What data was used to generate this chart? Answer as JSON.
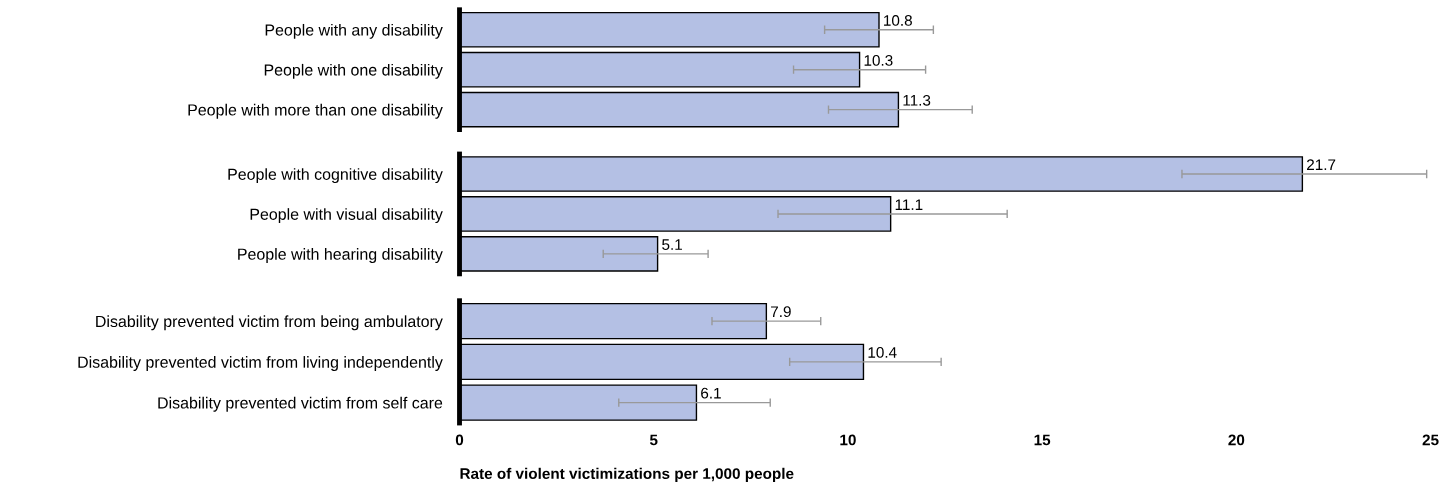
{
  "chart_data": [
    {
      "type": "bar",
      "orientation": "horizontal",
      "categories": [
        "People with any disability",
        "People with one disability",
        "People with more than one disability"
      ],
      "values": [
        10.8,
        10.3,
        11.3
      ],
      "errors": [
        [
          9.4,
          12.2
        ],
        [
          8.6,
          12.0
        ],
        [
          9.5,
          13.2
        ]
      ],
      "color": "#b4c0e4",
      "data_labels": true,
      "xlim": [
        0,
        25
      ],
      "tick_labels": "y",
      "grid": false,
      "legend": false
    },
    {
      "type": "bar",
      "orientation": "horizontal",
      "categories": [
        "People with cognitive disability",
        "People with visual disability",
        "People with hearing disability"
      ],
      "values": [
        21.7,
        11.1,
        5.1
      ],
      "errors": [
        [
          18.6,
          24.9
        ],
        [
          8.2,
          14.1
        ],
        [
          3.7,
          6.4
        ]
      ],
      "color": "#b4c0e4",
      "data_labels": true,
      "xlim": [
        0,
        25
      ],
      "tick_labels": "y",
      "grid": false,
      "legend": false
    },
    {
      "type": "bar",
      "orientation": "horizontal",
      "categories": [
        "Disability prevented victim from being ambulatory",
        "Disability prevented victim from living independently",
        "Disability prevented victim from self care"
      ],
      "values": [
        7.9,
        10.4,
        6.1
      ],
      "errors": [
        [
          6.5,
          9.3
        ],
        [
          8.5,
          12.4
        ],
        [
          4.1,
          8.0
        ]
      ],
      "color": "#b4c0e4",
      "data_labels": true,
      "xlim": [
        0,
        25
      ],
      "xticks": [
        0,
        5,
        10,
        15,
        20,
        25
      ],
      "xlabel": "Rate of violent victimizations per 1,000 people",
      "grid": false,
      "legend": false
    }
  ]
}
